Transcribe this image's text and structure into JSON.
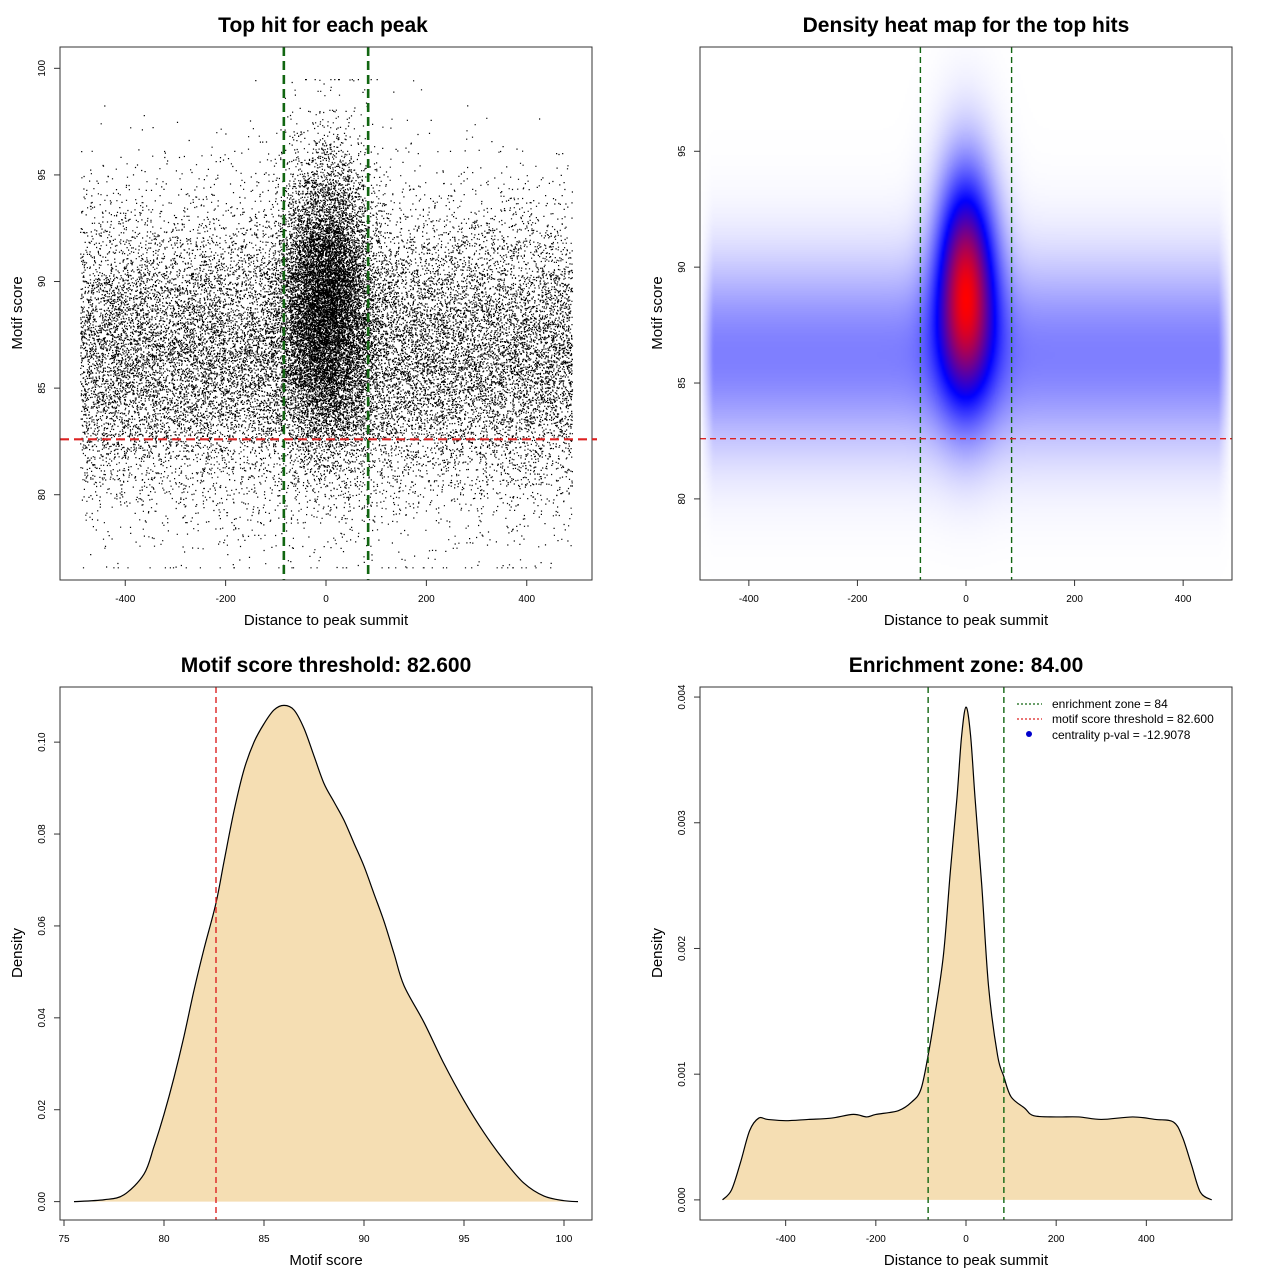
{
  "colors": {
    "threshold_line": "#dd2222",
    "zone_line": "#116611",
    "density_fill": "#f5deb3",
    "heat_low": "#ffffff",
    "heat_mid": "#0000ff",
    "heat_high": "#ff0000",
    "centrality_marker": "#0000cc"
  },
  "chart_data": [
    {
      "id": "scatter",
      "type": "scatter",
      "title": "Top hit for each peak",
      "xlabel": "Distance to peak summit",
      "ylabel": "Motif score",
      "xlim": [
        -530,
        530
      ],
      "ylim": [
        76,
        101
      ],
      "xticks": [
        -400,
        -200,
        0,
        200,
        400
      ],
      "yticks": [
        80,
        85,
        90,
        95,
        100
      ],
      "grid": false,
      "threshold": 82.6,
      "zone": [
        -84,
        84
      ],
      "point_distribution": {
        "n_background": 22000,
        "n_central": 11000,
        "x_range": [
          -490,
          490
        ],
        "background_score_mean": 86.6,
        "background_score_sd": 3.4,
        "central_x_sd": 45,
        "central_score_mean": 89.0,
        "central_score_sd": 3.3,
        "score_range": [
          76.6,
          99.5
        ]
      }
    },
    {
      "id": "heatmap",
      "type": "heatmap",
      "title": "Density heat map for the top hits",
      "xlabel": "Distance to peak summit",
      "ylabel": "Motif score",
      "xlim": [
        -490,
        490
      ],
      "ylim": [
        76.5,
        99.5
      ],
      "xticks": [
        -400,
        -200,
        0,
        200,
        400
      ],
      "yticks": [
        80,
        85,
        90,
        95
      ],
      "threshold": 82.6,
      "zone": [
        -84,
        84
      ],
      "color_scale": [
        "white",
        "blue",
        "red"
      ]
    },
    {
      "id": "score_density",
      "type": "area",
      "title": "Motif score threshold: 82.600",
      "xlabel": "Motif score",
      "ylabel": "Density",
      "xlim": [
        74.8,
        101.4
      ],
      "ylim": [
        -0.004,
        0.112
      ],
      "xticks": [
        75,
        80,
        85,
        90,
        95,
        100
      ],
      "yticks": [
        0.0,
        0.02,
        0.04,
        0.06,
        0.08,
        0.1
      ],
      "ytick_labels": [
        "0.00",
        "0.02",
        "0.04",
        "0.06",
        "0.08",
        "0.10"
      ],
      "threshold": 82.6,
      "x": [
        75.5,
        77,
        78,
        79,
        79.5,
        80,
        80.5,
        81,
        81.5,
        82,
        82.6,
        83,
        83.5,
        84,
        84.5,
        85,
        85.5,
        86,
        86.5,
        87,
        87.5,
        88,
        88.5,
        89,
        89.5,
        90,
        90.5,
        91,
        91.5,
        92,
        93,
        94,
        95,
        96,
        97,
        98,
        99,
        100,
        100.7
      ],
      "values": [
        0.0,
        0.0004,
        0.0015,
        0.006,
        0.012,
        0.019,
        0.027,
        0.036,
        0.046,
        0.055,
        0.065,
        0.074,
        0.085,
        0.094,
        0.1,
        0.104,
        0.107,
        0.108,
        0.107,
        0.103,
        0.097,
        0.091,
        0.087,
        0.083,
        0.078,
        0.073,
        0.067,
        0.061,
        0.054,
        0.047,
        0.039,
        0.03,
        0.022,
        0.015,
        0.009,
        0.004,
        0.0012,
        0.0002,
        0.0
      ]
    },
    {
      "id": "distance_density",
      "type": "area",
      "title": "Enrichment zone: 84.00",
      "xlabel": "Distance to peak summit",
      "ylabel": "Density",
      "xlim": [
        -590,
        590
      ],
      "ylim": [
        -0.00016,
        0.00408
      ],
      "xticks": [
        -400,
        -200,
        0,
        200,
        400
      ],
      "yticks": [
        0.0,
        0.001,
        0.002,
        0.003,
        0.004
      ],
      "ytick_labels": [
        "0.000",
        "0.001",
        "0.002",
        "0.003",
        "0.004"
      ],
      "zone": [
        -84,
        84
      ],
      "x": [
        -540,
        -520,
        -500,
        -480,
        -460,
        -440,
        -400,
        -350,
        -300,
        -250,
        -220,
        -200,
        -150,
        -120,
        -100,
        -84,
        -70,
        -50,
        -35,
        -20,
        -10,
        0,
        10,
        20,
        35,
        50,
        70,
        84,
        100,
        130,
        150,
        200,
        250,
        300,
        370,
        420,
        460,
        480,
        500,
        520,
        545
      ],
      "values": [
        0.0,
        8e-05,
        0.0003,
        0.00055,
        0.00065,
        0.00064,
        0.00063,
        0.00064,
        0.00065,
        0.00068,
        0.00066,
        0.00068,
        0.00071,
        0.00078,
        0.00088,
        0.00115,
        0.00145,
        0.00195,
        0.0026,
        0.0032,
        0.00368,
        0.00392,
        0.0037,
        0.0032,
        0.0025,
        0.0017,
        0.00115,
        0.00098,
        0.00082,
        0.00073,
        0.00067,
        0.00066,
        0.00066,
        0.00064,
        0.00066,
        0.00064,
        0.00062,
        0.0005,
        0.00028,
        6e-05,
        0.0
      ]
    }
  ],
  "legend": {
    "zone_label": "enrichment zone = 84",
    "threshold_label": "motif score threshold = 82.600",
    "pval_label": "centrality p-val = -12.9078"
  }
}
